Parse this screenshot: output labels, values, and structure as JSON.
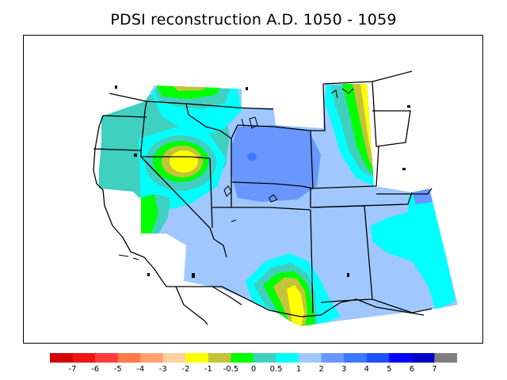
{
  "title": "PDSI reconstruction A.D. 1050 - 1059",
  "colors": {
    "c_m7": "#d40000",
    "c_m6": "#f01414",
    "c_m5": "#ff3c3c",
    "c_m4": "#ff7a4a",
    "c_m3": "#ffa070",
    "c_m2": "#ffd0a0",
    "c_m1": "#ffff00",
    "c_m05": "#c4c43a",
    "c_0": "#00ff00",
    "c_05": "#40d0c0",
    "c_1": "#00ffff",
    "c_2": "#a0c8ff",
    "c_3": "#6898ff",
    "c_4": "#3c78ff",
    "c_5": "#1e50ff",
    "c_6": "#0000ff",
    "c_7": "#0000c8",
    "c_over": "#808080"
  },
  "colorbar": {
    "swatches": [
      "#d40000",
      "#f01414",
      "#ff3c3c",
      "#ff7a4a",
      "#ffa070",
      "#ffd0a0",
      "#ffff00",
      "#c4c43a",
      "#00ff00",
      "#40d0c0",
      "#00ffff",
      "#a0c8ff",
      "#6898ff",
      "#3c78ff",
      "#1e50ff",
      "#0000ff",
      "#0000c8",
      "#808080"
    ],
    "labels": [
      "-7",
      "-6",
      "-5",
      "-4",
      "-3",
      "-2",
      "-1",
      "-0.5",
      "0",
      "0.5",
      "1",
      "2",
      "3",
      "4",
      "5",
      "6",
      "7"
    ]
  }
}
